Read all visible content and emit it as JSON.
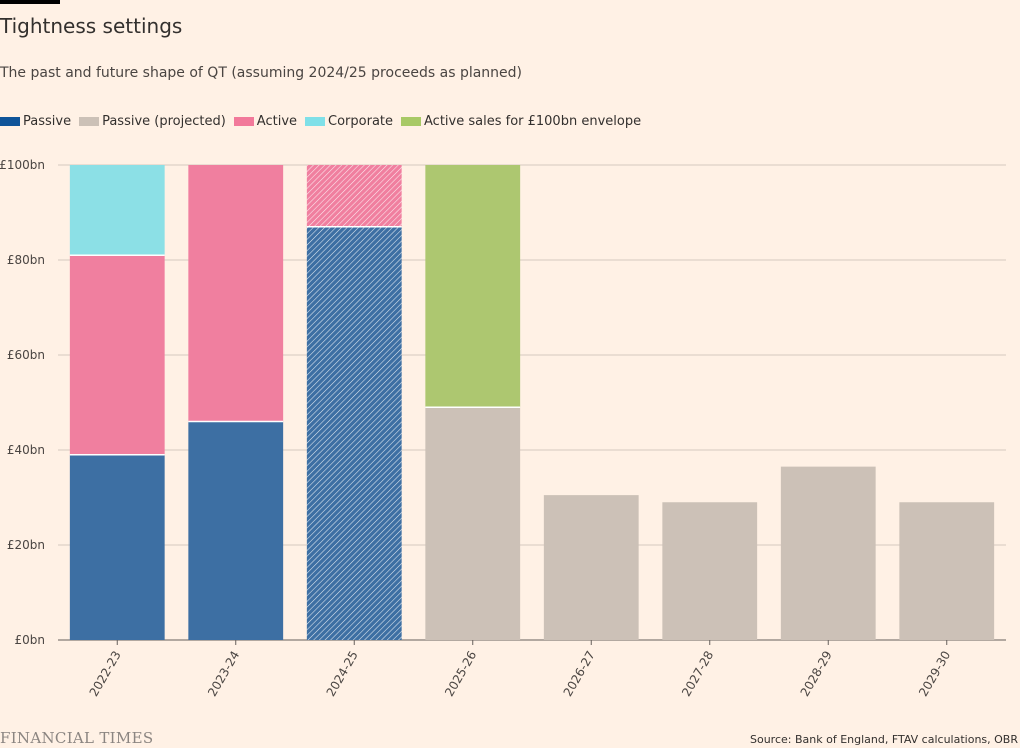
{
  "header": {
    "title": "Tightness settings",
    "subtitle": "The past and future shape of QT (assuming 2024/25 proceeds as planned)"
  },
  "legend": [
    {
      "label": "Passive",
      "color": "#0f5499"
    },
    {
      "label": "Passive (projected)",
      "color": "#ccc1b7"
    },
    {
      "label": "Active",
      "color": "#f2799a"
    },
    {
      "label": "Corporate",
      "color": "#7fe0e8"
    },
    {
      "label": "Active sales for £100bn envelope",
      "color": "#a8c966"
    }
  ],
  "chart_data": {
    "type": "bar",
    "stacked": true,
    "categories": [
      "2022-23",
      "2023-24",
      "2024-25",
      "2025-26",
      "2026-27",
      "2027-28",
      "2028-29",
      "2029-30"
    ],
    "series": [
      {
        "name": "Passive",
        "color": "#3d6fa3",
        "values": [
          39,
          46,
          87,
          0,
          0,
          0,
          0,
          0
        ],
        "hatched_from_index": 2
      },
      {
        "name": "Passive (projected)",
        "color": "#ccc1b7",
        "values": [
          0,
          0,
          0,
          49,
          30.5,
          29,
          36.5,
          29
        ]
      },
      {
        "name": "Active",
        "color": "#f07f9f",
        "values": [
          42,
          54,
          13,
          0,
          0,
          0,
          0,
          0
        ],
        "hatched_from_index": 2
      },
      {
        "name": "Corporate",
        "color": "#8ce0e6",
        "values": [
          19,
          0,
          0,
          0,
          0,
          0,
          0,
          0
        ]
      },
      {
        "name": "Active sales for £100bn envelope",
        "color": "#adc770",
        "values": [
          0,
          0,
          0,
          51,
          0,
          0,
          0,
          0
        ]
      }
    ],
    "yticks": [
      "£0bn",
      "£20bn",
      "£40bn",
      "£60bn",
      "£80bn",
      "£100bn"
    ],
    "ylim": [
      0,
      100
    ],
    "xlabel": "",
    "ylabel": "",
    "grid": true,
    "legend_position": "top-left"
  },
  "footer": {
    "brand": "FINANCIAL TIMES",
    "source": "Source: Bank of England, FTAV calculations, OBR"
  }
}
